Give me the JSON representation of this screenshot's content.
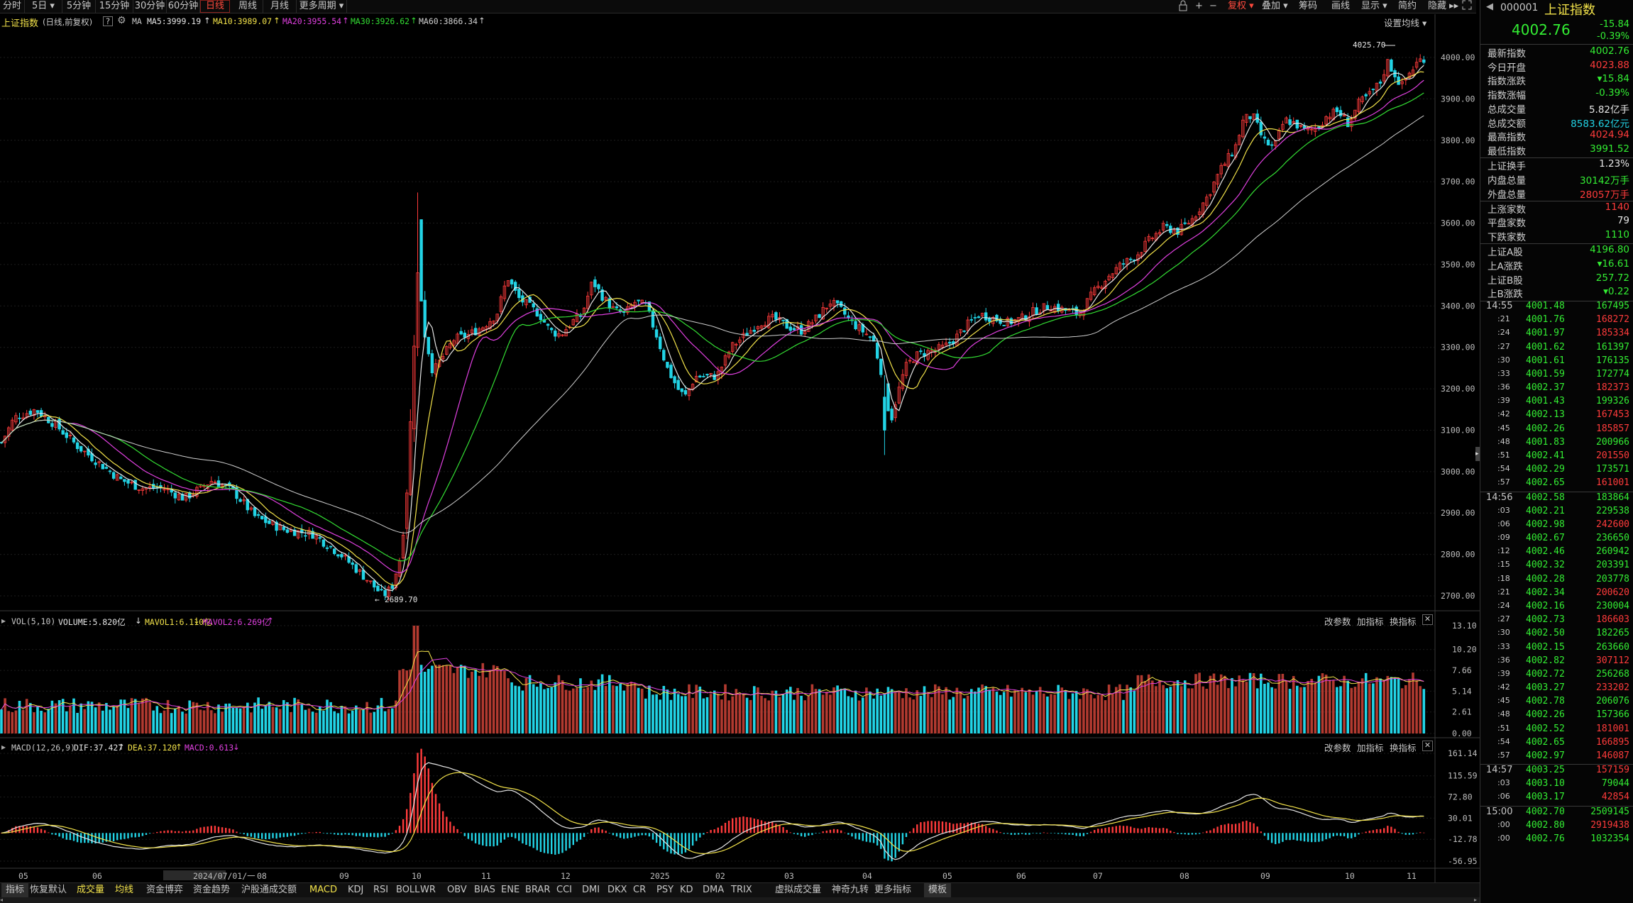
{
  "toolbar": {
    "periods": [
      {
        "label": "分时"
      },
      {
        "label": "5日 ▾"
      },
      {
        "label": "5分钟"
      },
      {
        "label": "15分钟"
      },
      {
        "label": "30分钟"
      },
      {
        "label": "60分钟"
      },
      {
        "label": "日线"
      },
      {
        "label": "周线"
      },
      {
        "label": "月线"
      },
      {
        "label": "更多周期 ▾"
      }
    ],
    "active_period": "日线",
    "right": {
      "adjust": "复权 ▾",
      "overlay": "叠加 ▾",
      "chips": "筹码",
      "draw": "画线",
      "display": "显示 ▾",
      "simple": "简约",
      "hide": "隐藏 ▸▸"
    },
    "icons": [
      "lock-icon",
      "plus-icon",
      "minus-icon",
      "fullscreen-icon"
    ]
  },
  "main_chart": {
    "title": "上证指数",
    "subtitle": "(日线,前复权)",
    "ma_label": "MA",
    "ma": [
      {
        "text": "MA5:3999.19",
        "color": "#e6e6e6"
      },
      {
        "text": "MA10:3989.07",
        "color": "#f2e24a"
      },
      {
        "text": "MA20:3955.54",
        "color": "#e040e0"
      },
      {
        "text": "MA30:3926.62",
        "color": "#33dd33"
      },
      {
        "text": "MA60:3866.34",
        "color": "#d0d0d0"
      }
    ],
    "settings": "设置均线 ▾",
    "high_note": "4025.70",
    "low_note": "2689.70",
    "y_ticks": [
      "4000.00",
      "3900.00",
      "3800.00",
      "3700.00",
      "3600.00",
      "3500.00",
      "3400.00",
      "3300.00",
      "3200.00",
      "3100.00",
      "3000.00",
      "2900.00",
      "2800.00",
      "2700.00"
    ]
  },
  "volume_pane": {
    "legend": "VOL(5,10)",
    "volume": "VOLUME:5.820亿",
    "mavol1": "MAVOL1:6.110亿",
    "mavol2": "MAVOL2:6.269亿",
    "buttons": [
      "改参数",
      "加指标",
      "换指标"
    ],
    "y_ticks": [
      "13.10",
      "10.20",
      "7.66",
      "5.14",
      "2.61",
      "0.00"
    ]
  },
  "macd_pane": {
    "legend": "MACD(12,26,9)",
    "dif": "DIF:37.427",
    "dea": "DEA:37.120",
    "macd": "MACD:0.613",
    "buttons": [
      "改参数",
      "加指标",
      "换指标"
    ],
    "y_ticks": [
      "161.14",
      "115.59",
      "72.80",
      "30.01",
      "-12.78",
      "-56.95"
    ]
  },
  "x_axis": [
    "05",
    "06",
    "2024/07/01/一",
    "08",
    "09",
    "10",
    "11",
    "12",
    "2025",
    "02",
    "03",
    "04",
    "05",
    "06",
    "07",
    "08",
    "09",
    "10",
    "11"
  ],
  "tabs": [
    "指标",
    "恢复默认",
    "成交量",
    "均线",
    "资金博弈",
    "资金趋势",
    "沪股通成交额",
    "MACD",
    "KDJ",
    "RSI",
    "BOLL",
    "WR",
    "OBV",
    "BIAS",
    "ENE",
    "BRAR",
    "CCI",
    "DMI",
    "DKX",
    "CR",
    "PSY",
    "KD",
    "DMA",
    "TRIX",
    "虚拟成交量",
    "神奇九转",
    "更多指标",
    "模板"
  ],
  "colors": {
    "up": "#ff3b3b",
    "down": "#22d4e6",
    "green": "#33ee33",
    "yellow": "#f2e24a",
    "cyan": "#22d4e6"
  },
  "side": {
    "code": "000001",
    "name": "上证指数",
    "price": "4002.76",
    "change": "-15.84",
    "change_pct": "-0.39%",
    "stats": [
      {
        "label": "最新指数",
        "value": "4002.76",
        "color": "#33ee33"
      },
      {
        "label": "今日开盘",
        "value": "4023.88",
        "color": "#ff3b3b"
      },
      {
        "label": "指数涨跌",
        "value": "▾15.84",
        "color": "#33ee33"
      },
      {
        "label": "指数涨幅",
        "value": "-0.39%",
        "color": "#33ee33"
      },
      {
        "label": "总成交量",
        "value": "5.82亿手",
        "color": "#e6e6e6"
      },
      {
        "label": "总成交额",
        "value": "8583.62亿元",
        "color": "#22d4e6"
      },
      {
        "label": "最高指数",
        "value": "4024.94",
        "color": "#ff3b3b"
      },
      {
        "label": "最低指数",
        "value": "3991.52",
        "color": "#33ee33"
      },
      {
        "label": "上证换手",
        "value": "1.23%",
        "color": "#e6e6e6"
      },
      {
        "label": "内盘总量",
        "value": "30142万手",
        "color": "#33ee33"
      },
      {
        "label": "外盘总量",
        "value": "28057万手",
        "color": "#ff3b3b"
      },
      {
        "label": "上涨家数",
        "value": "1140",
        "color": "#ff3b3b"
      },
      {
        "label": "平盘家数",
        "value": "79",
        "color": "#e6e6e6"
      },
      {
        "label": "下跌家数",
        "value": "1110",
        "color": "#33ee33"
      },
      {
        "label": "上证A股",
        "value": "4196.80",
        "color": "#33ee33"
      },
      {
        "label": "上A涨跌",
        "value": "▾16.61",
        "color": "#33ee33"
      },
      {
        "label": "上证B股",
        "value": "257.72",
        "color": "#33ee33"
      },
      {
        "label": "上B涨跌",
        "value": "▾0.22",
        "color": "#33ee33"
      }
    ],
    "ticks": [
      {
        "t": "14:55",
        "p": "4001.48",
        "v": "167495",
        "c": "#33ee33"
      },
      {
        "t": ":21",
        "p": "4001.76",
        "v": "168272",
        "c": "#ff3b3b"
      },
      {
        "t": ":24",
        "p": "4001.97",
        "v": "185334",
        "c": "#ff3b3b"
      },
      {
        "t": ":27",
        "p": "4001.62",
        "v": "161397",
        "c": "#33ee33"
      },
      {
        "t": ":30",
        "p": "4001.61",
        "v": "176135",
        "c": "#33ee33"
      },
      {
        "t": ":33",
        "p": "4001.59",
        "v": "172774",
        "c": "#33ee33"
      },
      {
        "t": ":36",
        "p": "4002.37",
        "v": "182373",
        "c": "#ff3b3b"
      },
      {
        "t": ":39",
        "p": "4001.43",
        "v": "199326",
        "c": "#33ee33"
      },
      {
        "t": ":42",
        "p": "4002.13",
        "v": "167453",
        "c": "#ff3b3b"
      },
      {
        "t": ":45",
        "p": "4002.26",
        "v": "185857",
        "c": "#ff3b3b"
      },
      {
        "t": ":48",
        "p": "4001.83",
        "v": "200966",
        "c": "#33ee33"
      },
      {
        "t": ":51",
        "p": "4002.41",
        "v": "201550",
        "c": "#ff3b3b"
      },
      {
        "t": ":54",
        "p": "4002.29",
        "v": "173571",
        "c": "#33ee33"
      },
      {
        "t": ":57",
        "p": "4002.65",
        "v": "161001",
        "c": "#ff3b3b"
      },
      {
        "t": "14:56",
        "p": "4002.58",
        "v": "183864",
        "c": "#33ee33"
      },
      {
        "t": ":03",
        "p": "4002.21",
        "v": "229538",
        "c": "#33ee33"
      },
      {
        "t": ":06",
        "p": "4002.98",
        "v": "242600",
        "c": "#ff3b3b"
      },
      {
        "t": ":09",
        "p": "4002.67",
        "v": "236650",
        "c": "#33ee33"
      },
      {
        "t": ":12",
        "p": "4002.46",
        "v": "260942",
        "c": "#33ee33"
      },
      {
        "t": ":15",
        "p": "4002.32",
        "v": "203391",
        "c": "#33ee33"
      },
      {
        "t": ":18",
        "p": "4002.28",
        "v": "203778",
        "c": "#33ee33"
      },
      {
        "t": ":21",
        "p": "4002.34",
        "v": "200620",
        "c": "#ff3b3b"
      },
      {
        "t": ":24",
        "p": "4002.16",
        "v": "230004",
        "c": "#33ee33"
      },
      {
        "t": ":27",
        "p": "4002.73",
        "v": "186603",
        "c": "#ff3b3b"
      },
      {
        "t": ":30",
        "p": "4002.50",
        "v": "182265",
        "c": "#33ee33"
      },
      {
        "t": ":33",
        "p": "4002.15",
        "v": "263660",
        "c": "#33ee33"
      },
      {
        "t": ":36",
        "p": "4002.82",
        "v": "307112",
        "c": "#ff3b3b"
      },
      {
        "t": ":39",
        "p": "4002.72",
        "v": "256268",
        "c": "#33ee33"
      },
      {
        "t": ":42",
        "p": "4003.27",
        "v": "233202",
        "c": "#ff3b3b"
      },
      {
        "t": ":45",
        "p": "4002.78",
        "v": "206076",
        "c": "#33ee33"
      },
      {
        "t": ":48",
        "p": "4002.26",
        "v": "157366",
        "c": "#33ee33"
      },
      {
        "t": ":51",
        "p": "4002.52",
        "v": "181001",
        "c": "#ff3b3b"
      },
      {
        "t": ":54",
        "p": "4002.65",
        "v": "166895",
        "c": "#ff3b3b"
      },
      {
        "t": ":57",
        "p": "4002.97",
        "v": "146087",
        "c": "#ff3b3b"
      },
      {
        "t": "14:57",
        "p": "4003.25",
        "v": "157159",
        "c": "#ff3b3b"
      },
      {
        "t": ":03",
        "p": "4003.10",
        "v": "79044",
        "c": "#33ee33"
      },
      {
        "t": ":06",
        "p": "4003.17",
        "v": "42854",
        "c": "#ff3b3b"
      },
      {
        "t": "15:00",
        "p": "4002.70",
        "v": "2509145",
        "c": "#33ee33"
      },
      {
        "t": ":00",
        "p": "4002.80",
        "v": "2919438",
        "c": "#ff3b3b"
      },
      {
        "t": ":00",
        "p": "4002.76",
        "v": "1032354",
        "c": "#33ee33"
      }
    ]
  }
}
